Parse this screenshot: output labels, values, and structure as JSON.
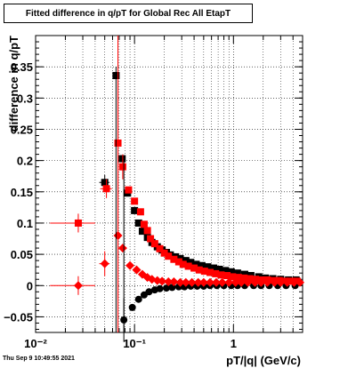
{
  "chart_data": {
    "type": "scatter",
    "title": "Fitted difference in q/pT for Global Rec All EtapT",
    "xlabel": "pT/|q| (GeV/c)",
    "ylabel": "difference in q/pT",
    "xscale": "log",
    "xlim": [
      0.01,
      5
    ],
    "ylim": [
      -0.075,
      0.4
    ],
    "grid": true,
    "x_ticks": [
      {
        "value": 0.01,
        "label": "10⁻²"
      },
      {
        "value": 0.1,
        "label": "10⁻¹"
      },
      {
        "value": 1,
        "label": "1"
      }
    ],
    "y_ticks": [
      {
        "value": -0.05,
        "label": "−0.05"
      },
      {
        "value": 0,
        "label": "0"
      },
      {
        "value": 0.05,
        "label": "0.05"
      },
      {
        "value": 0.1,
        "label": "0.1"
      },
      {
        "value": 0.15,
        "label": "0.15"
      },
      {
        "value": 0.2,
        "label": "0.2"
      },
      {
        "value": 0.25,
        "label": "0.25"
      },
      {
        "value": 0.3,
        "label": "0.3"
      },
      {
        "value": 0.35,
        "label": "0.35"
      }
    ],
    "series": [
      {
        "marker": "square",
        "color": "#000000",
        "points": [
          {
            "x": 0.05,
            "y": 0.165,
            "xerr": 0.006,
            "yerr": 0.012
          },
          {
            "x": 0.065,
            "y": 0.336,
            "xerr": 0.003,
            "yerr": 0.0
          },
          {
            "x": 0.075,
            "y": 0.203,
            "xerr": 0.003,
            "yerr": 0.0
          },
          {
            "x": 0.085,
            "y": 0.148,
            "xerr": 0.003
          },
          {
            "x": 0.1,
            "y": 0.12
          },
          {
            "x": 0.11,
            "y": 0.1
          },
          {
            "x": 0.12,
            "y": 0.087
          },
          {
            "x": 0.135,
            "y": 0.077
          },
          {
            "x": 0.15,
            "y": 0.069
          },
          {
            "x": 0.17,
            "y": 0.062
          },
          {
            "x": 0.19,
            "y": 0.057
          },
          {
            "x": 0.21,
            "y": 0.053
          },
          {
            "x": 0.23,
            "y": 0.049
          },
          {
            "x": 0.26,
            "y": 0.046
          },
          {
            "x": 0.29,
            "y": 0.043
          },
          {
            "x": 0.33,
            "y": 0.04
          },
          {
            "x": 0.37,
            "y": 0.037
          },
          {
            "x": 0.42,
            "y": 0.034
          },
          {
            "x": 0.48,
            "y": 0.032
          },
          {
            "x": 0.55,
            "y": 0.03
          },
          {
            "x": 0.63,
            "y": 0.028
          },
          {
            "x": 0.72,
            "y": 0.026
          },
          {
            "x": 0.83,
            "y": 0.024
          },
          {
            "x": 0.95,
            "y": 0.022
          },
          {
            "x": 1.1,
            "y": 0.02
          },
          {
            "x": 1.3,
            "y": 0.018
          },
          {
            "x": 1.5,
            "y": 0.016
          },
          {
            "x": 1.8,
            "y": 0.014
          },
          {
            "x": 2.1,
            "y": 0.012
          },
          {
            "x": 2.5,
            "y": 0.011
          },
          {
            "x": 3.0,
            "y": 0.01
          },
          {
            "x": 3.6,
            "y": 0.009
          },
          {
            "x": 4.3,
            "y": 0.009
          }
        ]
      },
      {
        "marker": "square",
        "color": "#ff0000",
        "points": [
          {
            "x": 0.027,
            "y": 0.1,
            "xerr": 0.013,
            "yerr": 0.015
          },
          {
            "x": 0.052,
            "y": 0.155,
            "xerr": 0.007,
            "yerr": 0.015
          },
          {
            "x": 0.068,
            "y": 0.228,
            "xerr": 0.004,
            "yerr": 0.1
          },
          {
            "x": 0.076,
            "y": 0.19,
            "xerr": 0.003,
            "yerr": 0.02
          },
          {
            "x": 0.087,
            "y": 0.153,
            "xerr": 0.004
          },
          {
            "x": 0.1,
            "y": 0.135
          },
          {
            "x": 0.115,
            "y": 0.118
          },
          {
            "x": 0.125,
            "y": 0.098
          },
          {
            "x": 0.135,
            "y": 0.088
          },
          {
            "x": 0.145,
            "y": 0.075
          },
          {
            "x": 0.16,
            "y": 0.067
          },
          {
            "x": 0.18,
            "y": 0.059
          },
          {
            "x": 0.2,
            "y": 0.052
          },
          {
            "x": 0.22,
            "y": 0.047
          },
          {
            "x": 0.25,
            "y": 0.042
          },
          {
            "x": 0.28,
            "y": 0.038
          },
          {
            "x": 0.31,
            "y": 0.034
          },
          {
            "x": 0.35,
            "y": 0.031
          },
          {
            "x": 0.4,
            "y": 0.028
          },
          {
            "x": 0.45,
            "y": 0.025
          },
          {
            "x": 0.51,
            "y": 0.023
          },
          {
            "x": 0.58,
            "y": 0.021
          },
          {
            "x": 0.66,
            "y": 0.019
          },
          {
            "x": 0.75,
            "y": 0.017
          },
          {
            "x": 0.86,
            "y": 0.016
          },
          {
            "x": 0.98,
            "y": 0.014
          },
          {
            "x": 1.12,
            "y": 0.013
          },
          {
            "x": 1.28,
            "y": 0.012
          },
          {
            "x": 1.46,
            "y": 0.011
          },
          {
            "x": 1.67,
            "y": 0.01
          },
          {
            "x": 1.9,
            "y": 0.009
          },
          {
            "x": 2.2,
            "y": 0.009
          },
          {
            "x": 2.5,
            "y": 0.008
          },
          {
            "x": 2.9,
            "y": 0.008
          },
          {
            "x": 3.3,
            "y": 0.007
          },
          {
            "x": 3.8,
            "y": 0.007
          },
          {
            "x": 4.4,
            "y": 0.007
          }
        ]
      },
      {
        "marker": "circle",
        "color": "#000000",
        "points": [
          {
            "x": 0.078,
            "y": -0.055,
            "yerr": 0.035
          },
          {
            "x": 0.095,
            "y": -0.035
          },
          {
            "x": 0.11,
            "y": -0.022
          },
          {
            "x": 0.125,
            "y": -0.015
          },
          {
            "x": 0.14,
            "y": -0.01
          },
          {
            "x": 0.16,
            "y": -0.007
          },
          {
            "x": 0.18,
            "y": -0.005
          },
          {
            "x": 0.21,
            "y": -0.004
          },
          {
            "x": 0.24,
            "y": -0.003
          },
          {
            "x": 0.28,
            "y": -0.002
          },
          {
            "x": 0.32,
            "y": -0.002
          },
          {
            "x": 0.37,
            "y": -0.001
          },
          {
            "x": 0.43,
            "y": -0.001
          },
          {
            "x": 0.5,
            "y": -0.001
          },
          {
            "x": 0.58,
            "y": 0.0
          },
          {
            "x": 0.68,
            "y": 0.0
          },
          {
            "x": 0.8,
            "y": 0.0
          },
          {
            "x": 0.95,
            "y": 0.0
          },
          {
            "x": 1.1,
            "y": 0.0
          },
          {
            "x": 1.3,
            "y": 0.0
          },
          {
            "x": 1.6,
            "y": 0.0
          },
          {
            "x": 1.9,
            "y": 0.0
          },
          {
            "x": 2.3,
            "y": 0.0
          },
          {
            "x": 2.8,
            "y": 0.0
          },
          {
            "x": 3.4,
            "y": 0.0
          },
          {
            "x": 4.2,
            "y": 0.0
          }
        ]
      },
      {
        "marker": "diamond",
        "color": "#ff0000",
        "points": [
          {
            "x": 0.027,
            "y": 0.0,
            "xerr": 0.013,
            "yerr": 0.015
          },
          {
            "x": 0.05,
            "y": 0.035,
            "xerr": 0.006,
            "yerr": 0.02
          },
          {
            "x": 0.068,
            "y": 0.08,
            "xerr": 0.004,
            "yerr": 0.1
          },
          {
            "x": 0.076,
            "y": 0.06,
            "xerr": 0.003
          },
          {
            "x": 0.09,
            "y": 0.032
          },
          {
            "x": 0.105,
            "y": 0.025
          },
          {
            "x": 0.12,
            "y": 0.018
          },
          {
            "x": 0.135,
            "y": 0.013
          },
          {
            "x": 0.15,
            "y": 0.01
          },
          {
            "x": 0.17,
            "y": 0.008
          },
          {
            "x": 0.19,
            "y": 0.007
          },
          {
            "x": 0.22,
            "y": 0.006
          },
          {
            "x": 0.25,
            "y": 0.006
          },
          {
            "x": 0.29,
            "y": 0.005
          },
          {
            "x": 0.33,
            "y": 0.005
          },
          {
            "x": 0.38,
            "y": 0.005
          },
          {
            "x": 0.44,
            "y": 0.005
          },
          {
            "x": 0.5,
            "y": 0.005
          },
          {
            "x": 0.58,
            "y": 0.005
          },
          {
            "x": 0.67,
            "y": 0.005
          },
          {
            "x": 0.77,
            "y": 0.005
          },
          {
            "x": 0.9,
            "y": 0.005
          },
          {
            "x": 1.05,
            "y": 0.005
          },
          {
            "x": 1.2,
            "y": 0.005
          },
          {
            "x": 1.4,
            "y": 0.005
          },
          {
            "x": 1.65,
            "y": 0.005
          },
          {
            "x": 1.9,
            "y": 0.005
          },
          {
            "x": 2.2,
            "y": 0.005
          },
          {
            "x": 2.6,
            "y": 0.005
          },
          {
            "x": 3.0,
            "y": 0.005
          },
          {
            "x": 3.5,
            "y": 0.005
          },
          {
            "x": 4.1,
            "y": 0.005
          },
          {
            "x": 4.7,
            "y": 0.005
          }
        ]
      }
    ]
  },
  "timestamp": "Thu Sep  9 10:49:55 2021"
}
